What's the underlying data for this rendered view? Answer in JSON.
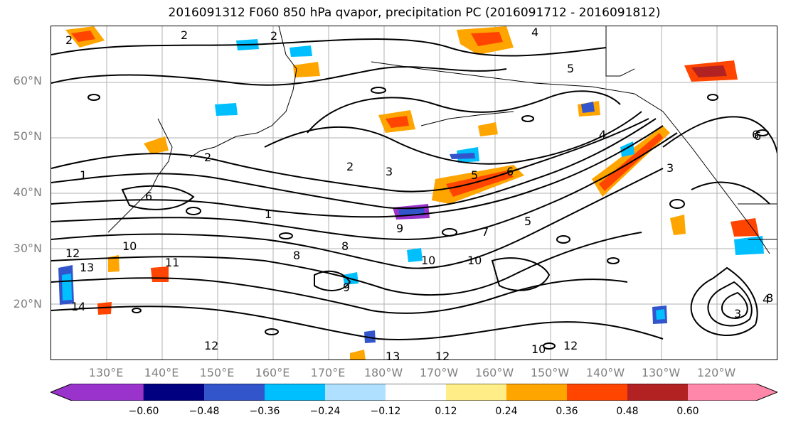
{
  "title": "2016091312 F060 850 hPa qvapor, precipitation PC (2016091712 - 2016091812)",
  "lat_labels": [
    "60°N",
    "50°N",
    "40°N",
    "30°N",
    "20°N"
  ],
  "lon_labels": [
    "130°E",
    "140°E",
    "150°E",
    "160°E",
    "170°E",
    "180°W",
    "170°W",
    "160°W",
    "150°W",
    "140°W",
    "130°W",
    "120°W"
  ],
  "colorbar": {
    "colors": [
      "#9933cc",
      "#000080",
      "#3355cc",
      "#00bfff",
      "#b0e0ff",
      "#ffffff",
      "#ffee88",
      "#ffa500",
      "#ff4500",
      "#b22222",
      "#ff88aa"
    ],
    "tick_labels": [
      "−0.60",
      "−0.48",
      "−0.36",
      "−0.24",
      "−0.12",
      "0.12",
      "0.24",
      "0.36",
      "0.48",
      "0.60"
    ]
  },
  "contour_labels": [
    "2",
    "4",
    "2",
    "2",
    "3",
    "5",
    "6",
    "2",
    "3",
    "4",
    "5",
    "6",
    "1",
    "2",
    "5",
    "6",
    "9",
    "8",
    "10",
    "11",
    "12",
    "13",
    "14",
    "8",
    "9",
    "10",
    "7",
    "10",
    "12",
    "13",
    "12",
    "10",
    "12",
    "6",
    "3",
    "4",
    "8",
    "1"
  ]
}
